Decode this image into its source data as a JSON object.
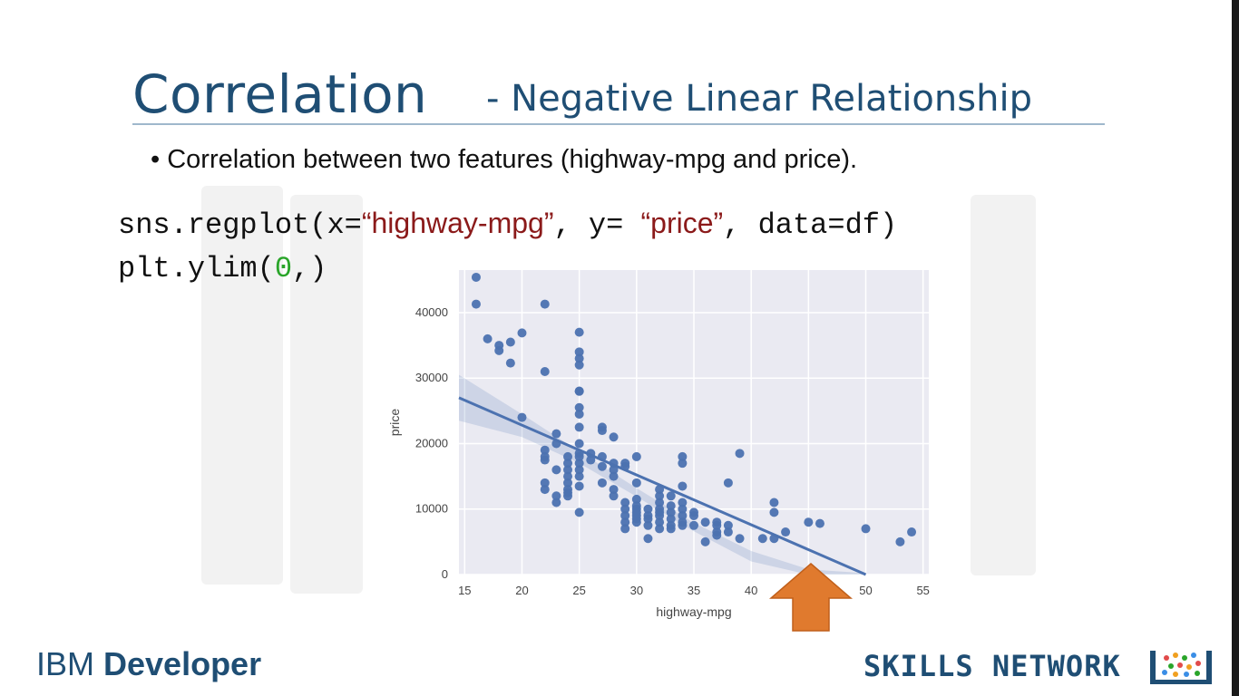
{
  "slide": {
    "title_main": "Correlation",
    "title_sub": "- Negative Linear Relationship",
    "bullet": "Correlation between two features (highway-mpg and price).",
    "code_line1": {
      "a": "sns.regplot(x=",
      "b": "“highway-mpg”",
      "c": ", y= ",
      "d": "“price”",
      "e": ", data=df)"
    },
    "code_line2": {
      "a": "plt.ylim(",
      "b": "0",
      "c": ",)"
    },
    "footer_left_regular": "IBM ",
    "footer_left_bold": "Developer",
    "footer_right": "SKILLS NETWORK"
  },
  "colors": {
    "title": "#1f4e74",
    "point": "#4c72b0",
    "plot_bg": "#eaeaf2",
    "arrow": "#e07a2e",
    "string": "#8b1a1a",
    "number": "#2aa52a"
  },
  "chart_data": {
    "type": "scatter",
    "xlabel": "highway-mpg",
    "ylabel": "price",
    "xlim": [
      14.5,
      55.5
    ],
    "ylim": [
      0,
      46500
    ],
    "xticks": [
      15,
      20,
      25,
      30,
      35,
      40,
      45,
      50,
      55
    ],
    "yticks": [
      0,
      10000,
      20000,
      30000,
      40000
    ],
    "grid": true,
    "regression": {
      "x": [
        14.5,
        50
      ],
      "y": [
        27000,
        0
      ],
      "ci_band": true
    },
    "points": [
      [
        16,
        45400
      ],
      [
        16,
        41300
      ],
      [
        17,
        36000
      ],
      [
        18,
        35000
      ],
      [
        18,
        34200
      ],
      [
        19,
        35500
      ],
      [
        19,
        32300
      ],
      [
        20,
        36900
      ],
      [
        20,
        24000
      ],
      [
        22,
        41300
      ],
      [
        22,
        31000
      ],
      [
        22,
        19000
      ],
      [
        22,
        18000
      ],
      [
        22,
        17500
      ],
      [
        22,
        14000
      ],
      [
        22,
        13000
      ],
      [
        23,
        21500
      ],
      [
        23,
        20000
      ],
      [
        23,
        16000
      ],
      [
        23,
        12000
      ],
      [
        23,
        11000
      ],
      [
        24,
        18000
      ],
      [
        24,
        17000
      ],
      [
        24,
        16000
      ],
      [
        24,
        15000
      ],
      [
        24,
        14000
      ],
      [
        24,
        13000
      ],
      [
        24,
        12500
      ],
      [
        24,
        12000
      ],
      [
        25,
        37000
      ],
      [
        25,
        34000
      ],
      [
        25,
        33000
      ],
      [
        25,
        32000
      ],
      [
        25,
        28000
      ],
      [
        25,
        28000
      ],
      [
        25,
        25500
      ],
      [
        25,
        24500
      ],
      [
        25,
        22500
      ],
      [
        25,
        20000
      ],
      [
        25,
        18500
      ],
      [
        25,
        18000
      ],
      [
        25,
        17000
      ],
      [
        25,
        16000
      ],
      [
        25,
        15000
      ],
      [
        25,
        13500
      ],
      [
        25,
        9500
      ],
      [
        26,
        18500
      ],
      [
        26,
        17500
      ],
      [
        27,
        22500
      ],
      [
        27,
        22000
      ],
      [
        27,
        18000
      ],
      [
        27,
        16500
      ],
      [
        27,
        14000
      ],
      [
        28,
        21000
      ],
      [
        28,
        17000
      ],
      [
        28,
        16000
      ],
      [
        28,
        15000
      ],
      [
        28,
        13000
      ],
      [
        28,
        12000
      ],
      [
        29,
        17000
      ],
      [
        29,
        16500
      ],
      [
        29,
        11000
      ],
      [
        29,
        10000
      ],
      [
        29,
        9000
      ],
      [
        29,
        8000
      ],
      [
        29,
        7000
      ],
      [
        30,
        18000
      ],
      [
        30,
        14000
      ],
      [
        30,
        11500
      ],
      [
        30,
        10500
      ],
      [
        30,
        10000
      ],
      [
        30,
        9500
      ],
      [
        30,
        9000
      ],
      [
        30,
        8500
      ],
      [
        30,
        8000
      ],
      [
        31,
        10000
      ],
      [
        31,
        9000
      ],
      [
        31,
        8500
      ],
      [
        31,
        7500
      ],
      [
        31,
        5500
      ],
      [
        32,
        13000
      ],
      [
        32,
        12000
      ],
      [
        32,
        11000
      ],
      [
        32,
        10000
      ],
      [
        32,
        9500
      ],
      [
        32,
        9000
      ],
      [
        32,
        8000
      ],
      [
        32,
        7000
      ],
      [
        33,
        12000
      ],
      [
        33,
        10500
      ],
      [
        33,
        9500
      ],
      [
        33,
        8500
      ],
      [
        33,
        7500
      ],
      [
        33,
        7000
      ],
      [
        34,
        18000
      ],
      [
        34,
        17000
      ],
      [
        34,
        13500
      ],
      [
        34,
        11000
      ],
      [
        34,
        10000
      ],
      [
        34,
        9000
      ],
      [
        34,
        8000
      ],
      [
        34,
        7500
      ],
      [
        35,
        9500
      ],
      [
        35,
        9000
      ],
      [
        35,
        7500
      ],
      [
        36,
        8000
      ],
      [
        36,
        5000
      ],
      [
        37,
        8000
      ],
      [
        37,
        7500
      ],
      [
        37,
        6500
      ],
      [
        37,
        6000
      ],
      [
        38,
        14000
      ],
      [
        38,
        7500
      ],
      [
        38,
        6500
      ],
      [
        39,
        18500
      ],
      [
        39,
        5500
      ],
      [
        41,
        5500
      ],
      [
        42,
        11000
      ],
      [
        42,
        9500
      ],
      [
        42,
        5500
      ],
      [
        43,
        6500
      ],
      [
        45,
        8000
      ],
      [
        46,
        7800
      ],
      [
        50,
        7000
      ],
      [
        53,
        5000
      ],
      [
        54,
        6500
      ]
    ]
  }
}
